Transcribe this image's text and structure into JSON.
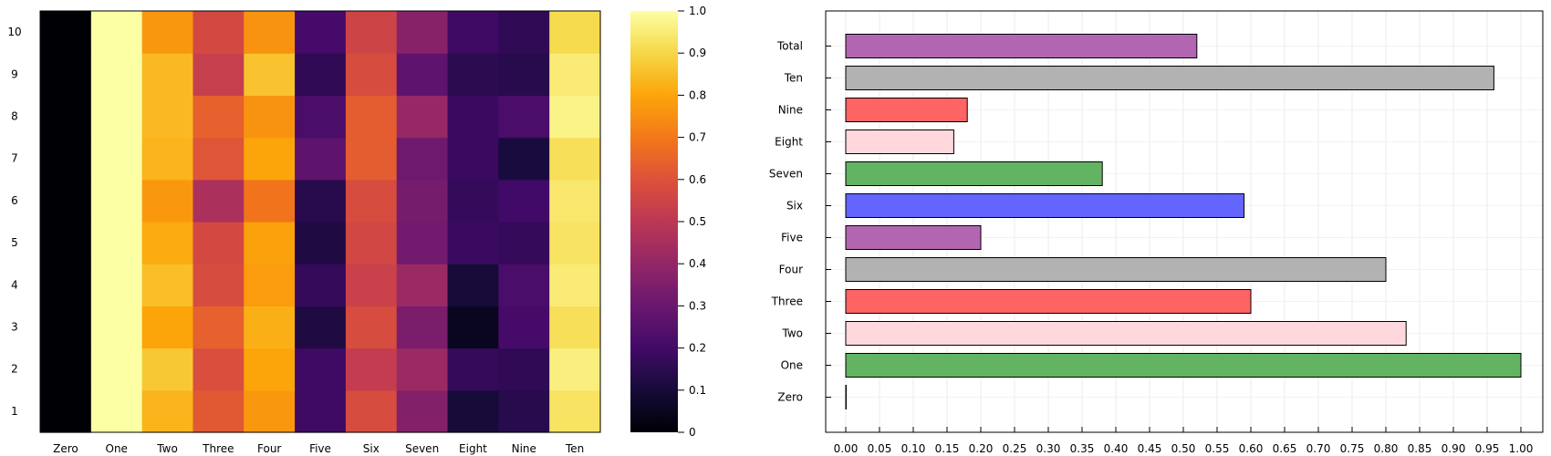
{
  "chart_data": [
    {
      "type": "heatmap",
      "title": "",
      "xlabel": "",
      "ylabel": "",
      "columns": [
        "Zero",
        "One",
        "Two",
        "Three",
        "Four",
        "Five",
        "Six",
        "Seven",
        "Eight",
        "Nine",
        "Ten"
      ],
      "rows": [
        "1",
        "2",
        "3",
        "4",
        "5",
        "6",
        "7",
        "8",
        "9",
        "10"
      ],
      "values": [
        [
          0.0,
          1.0,
          0.83,
          0.62,
          0.77,
          0.19,
          0.58,
          0.36,
          0.1,
          0.14,
          0.93
        ],
        [
          0.0,
          1.0,
          0.87,
          0.59,
          0.8,
          0.19,
          0.52,
          0.42,
          0.17,
          0.16,
          0.96
        ],
        [
          0.0,
          1.0,
          0.8,
          0.64,
          0.82,
          0.12,
          0.58,
          0.34,
          0.05,
          0.21,
          0.92
        ],
        [
          0.0,
          1.0,
          0.85,
          0.58,
          0.78,
          0.17,
          0.54,
          0.42,
          0.1,
          0.22,
          0.95
        ],
        [
          0.0,
          1.0,
          0.81,
          0.57,
          0.79,
          0.12,
          0.56,
          0.32,
          0.18,
          0.17,
          0.93
        ],
        [
          0.0,
          1.0,
          0.77,
          0.46,
          0.69,
          0.14,
          0.58,
          0.33,
          0.17,
          0.2,
          0.94
        ],
        [
          0.0,
          1.0,
          0.83,
          0.61,
          0.8,
          0.27,
          0.63,
          0.31,
          0.18,
          0.11,
          0.92
        ],
        [
          0.0,
          1.0,
          0.84,
          0.64,
          0.76,
          0.22,
          0.63,
          0.41,
          0.18,
          0.22,
          0.97
        ],
        [
          0.0,
          1.0,
          0.84,
          0.53,
          0.86,
          0.16,
          0.58,
          0.27,
          0.15,
          0.14,
          0.95
        ],
        [
          0.0,
          1.0,
          0.77,
          0.57,
          0.76,
          0.21,
          0.55,
          0.37,
          0.19,
          0.16,
          0.91
        ]
      ],
      "colorbar": {
        "range": [
          0,
          1
        ],
        "ticks": [
          "0",
          "0.1",
          "0.2",
          "0.3",
          "0.4",
          "0.5",
          "0.6",
          "0.7",
          "0.8",
          "0.9",
          "1.0"
        ],
        "colormap": "inferno"
      }
    },
    {
      "type": "bar",
      "orientation": "horizontal",
      "title": "",
      "xlabel": "",
      "ylabel": "",
      "categories": [
        "Zero",
        "One",
        "Two",
        "Three",
        "Four",
        "Five",
        "Six",
        "Seven",
        "Eight",
        "Nine",
        "Ten",
        "Total"
      ],
      "values": [
        0.0,
        1.0,
        0.83,
        0.6,
        0.8,
        0.2,
        0.59,
        0.38,
        0.16,
        0.18,
        0.96,
        0.52
      ],
      "colors": [
        "#62B462",
        "#62B462",
        "#FFD8DE",
        "#FF6464",
        "#B2B2B2",
        "#B266B2",
        "#6464FF",
        "#62B462",
        "#FFD8DE",
        "#FF6464",
        "#B2B2B2",
        "#B266B2"
      ],
      "xlim": [
        0.0,
        1.0
      ],
      "xticks": [
        "0.00",
        "0.05",
        "0.10",
        "0.15",
        "0.20",
        "0.25",
        "0.30",
        "0.35",
        "0.40",
        "0.45",
        "0.50",
        "0.55",
        "0.60",
        "0.65",
        "0.70",
        "0.75",
        "0.80",
        "0.85",
        "0.90",
        "0.95",
        "1.00"
      ],
      "grid": true
    }
  ]
}
